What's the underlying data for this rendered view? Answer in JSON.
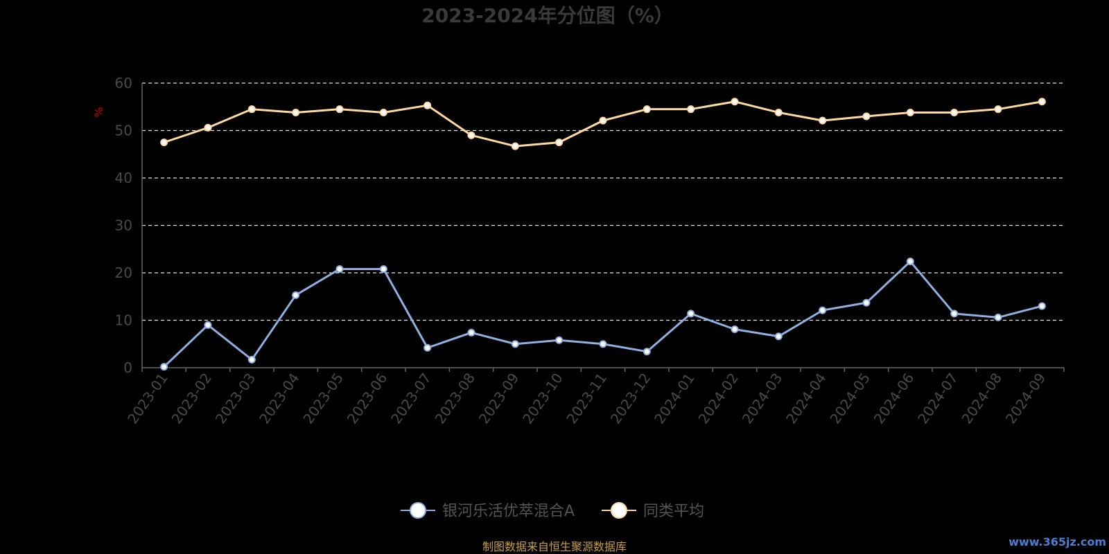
{
  "chart_data": {
    "type": "line",
    "title": "2023-2024年分位图（%）",
    "ylabel": "%",
    "ylim": [
      0,
      60
    ],
    "yticks": [
      "0",
      "10",
      "20",
      "30",
      "40",
      "50",
      "60"
    ],
    "grid": true,
    "legend_position": "bottom-center",
    "categories": [
      "2023-01",
      "2023-02",
      "2023-03",
      "2023-04",
      "2023-05",
      "2023-06",
      "2023-07",
      "2023-08",
      "2023-09",
      "2023-10",
      "2023-11",
      "2023-12",
      "2024-01",
      "2024-02",
      "2024-03",
      "2024-04",
      "2024-05",
      "2024-06",
      "2024-07",
      "2024-08",
      "2024-09"
    ],
    "series": [
      {
        "name": "银河乐活优萃混合A",
        "color": "#8fb0e0",
        "values": [
          0.2,
          9.0,
          1.7,
          15.3,
          20.8,
          20.8,
          4.2,
          7.4,
          5.0,
          5.8,
          5.0,
          3.4,
          11.4,
          8.1,
          6.6,
          12.1,
          13.7,
          22.4,
          11.4,
          10.6,
          13.0
        ]
      },
      {
        "name": "同类平均",
        "color": "#ffd9a0",
        "values": [
          47.5,
          50.6,
          54.5,
          53.8,
          54.5,
          53.8,
          55.3,
          49.0,
          46.7,
          47.5,
          52.1,
          54.5,
          54.5,
          56.1,
          53.8,
          52.1,
          53.0,
          53.8,
          53.8,
          54.5,
          56.1
        ]
      }
    ]
  },
  "footer": {
    "source": "制图数据来自恒生聚源数据库",
    "watermark": "www.365jz.com"
  }
}
